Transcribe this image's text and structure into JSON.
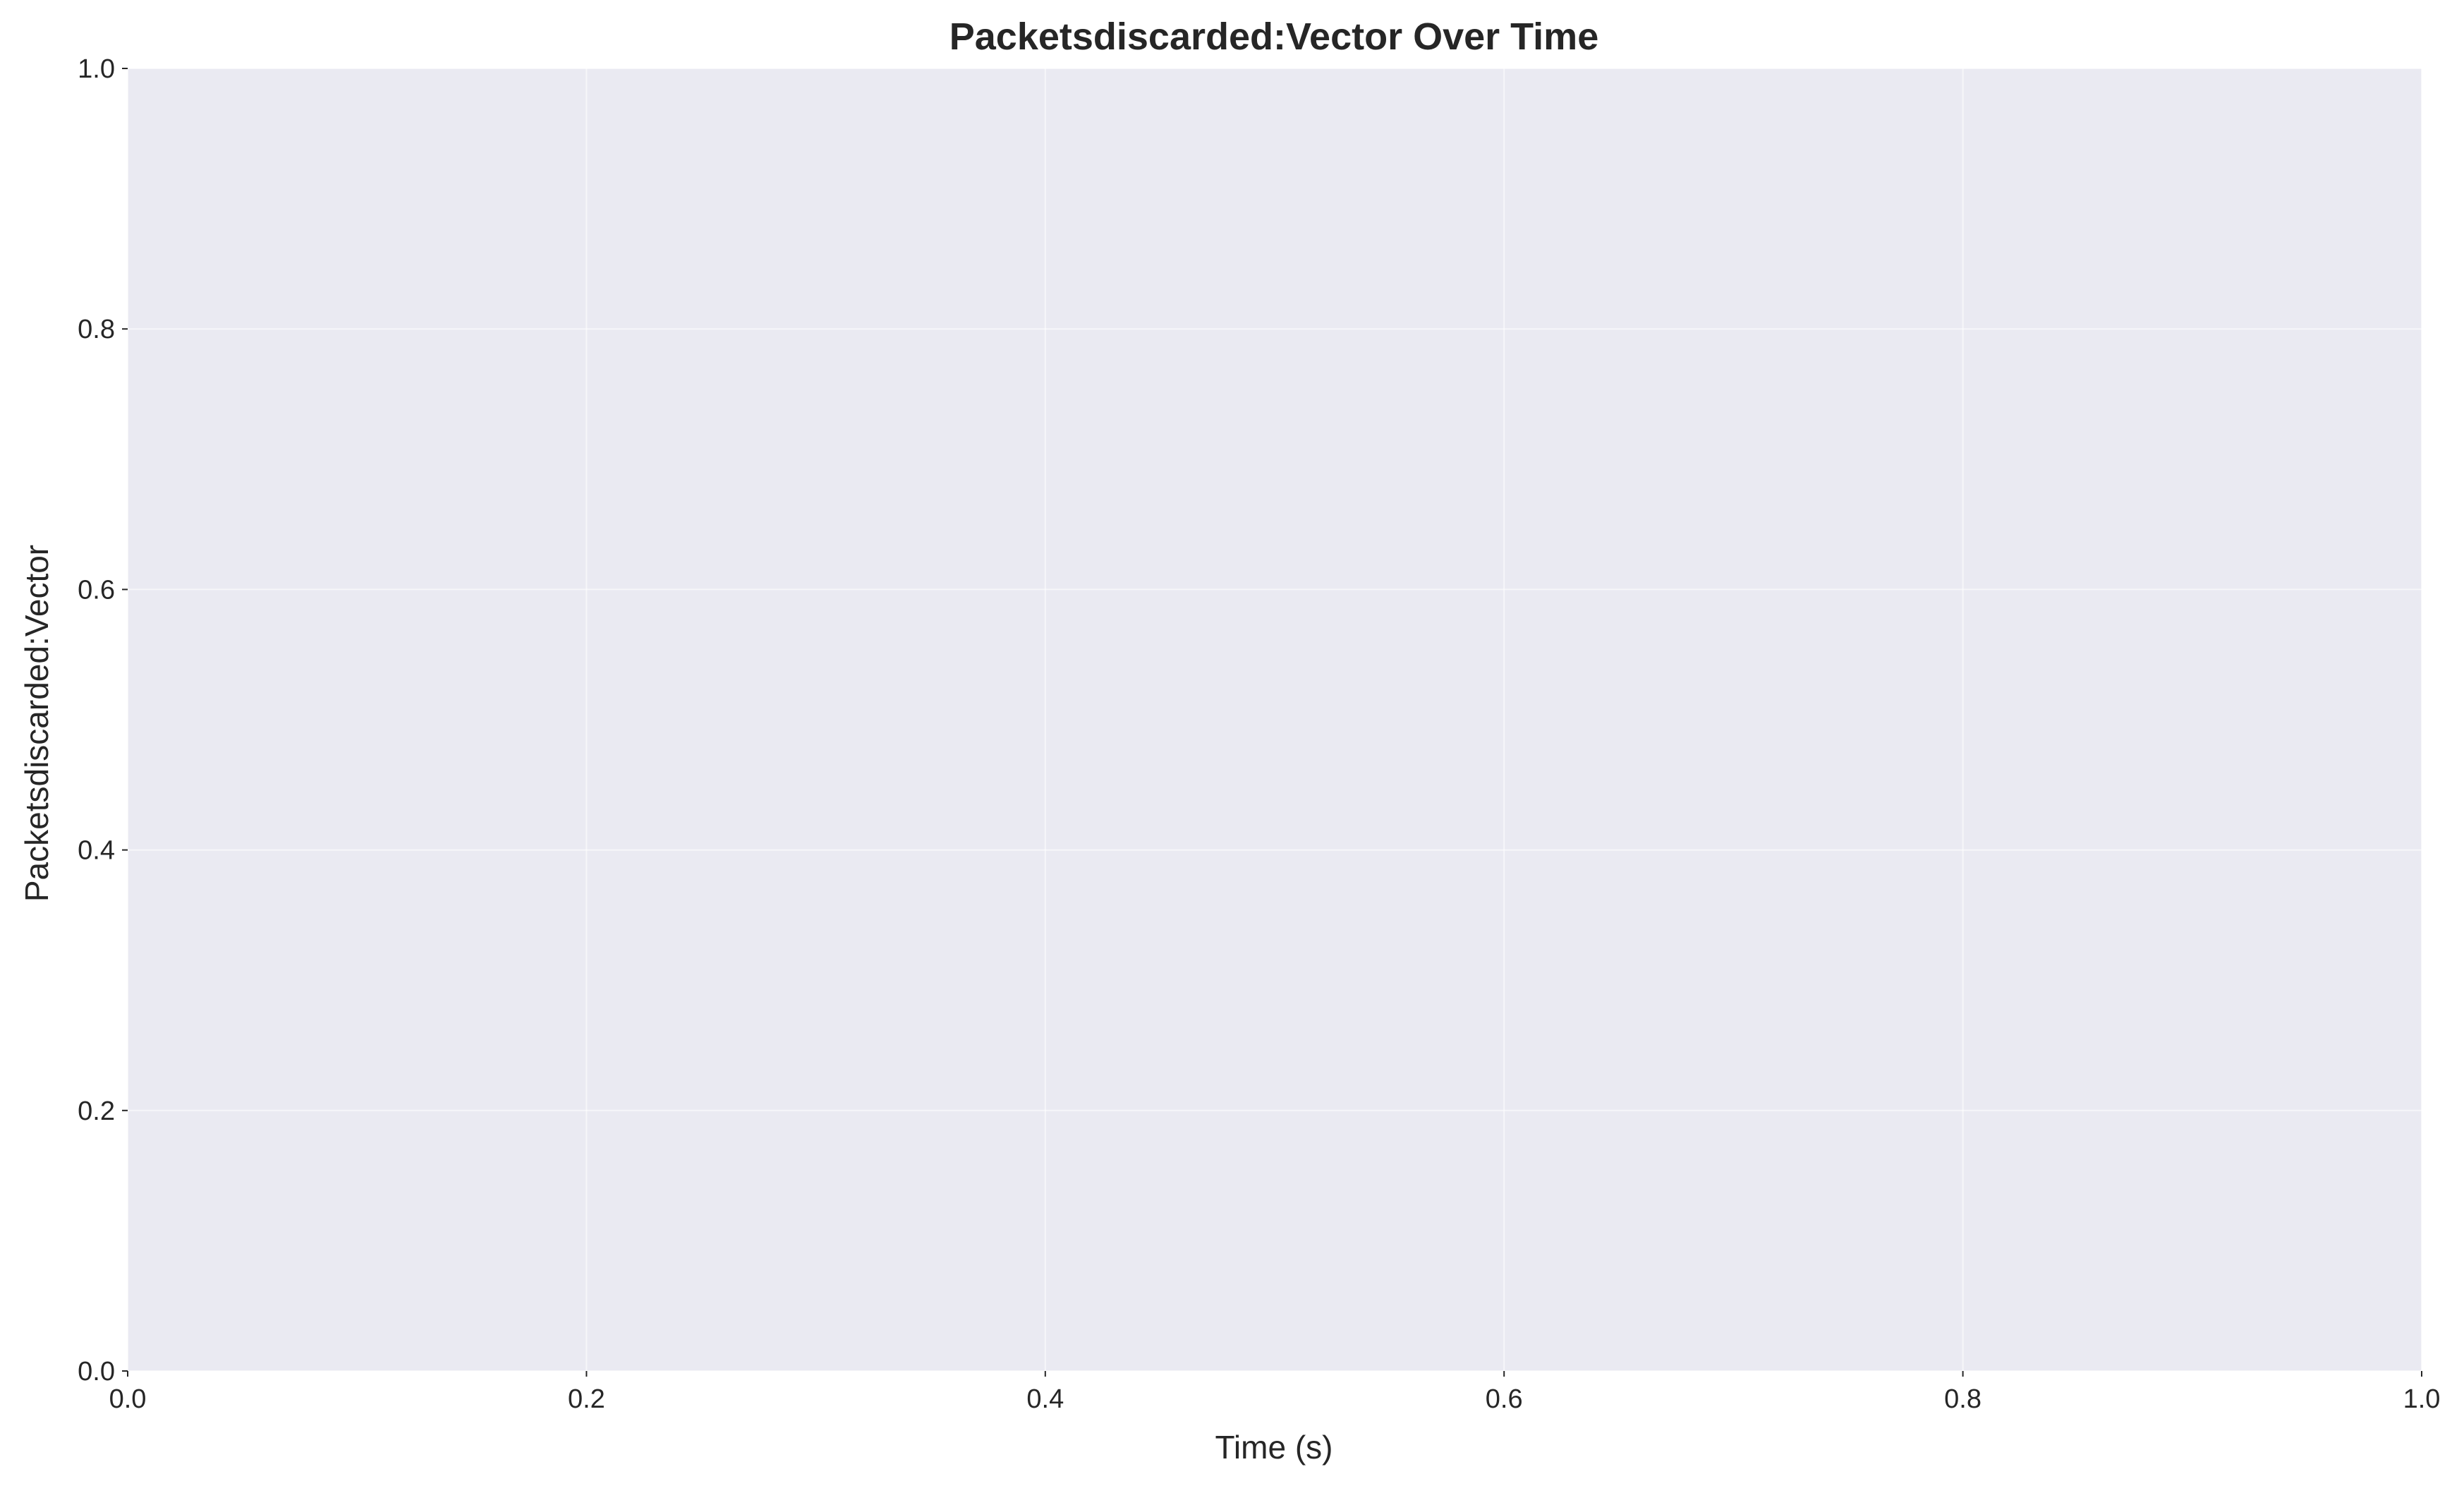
{
  "chart_data": {
    "type": "line",
    "title": "Packetsdiscarded:Vector Over Time",
    "xlabel": "Time (s)",
    "ylabel": "Packetsdiscarded:Vector",
    "xlim": [
      0.0,
      1.0
    ],
    "ylim": [
      0.0,
      1.0
    ],
    "x_ticks": [
      "0.0",
      "0.2",
      "0.4",
      "0.6",
      "0.8",
      "1.0"
    ],
    "y_ticks": [
      "0.0",
      "0.2",
      "0.4",
      "0.6",
      "0.8",
      "1.0"
    ],
    "series": [],
    "grid": true,
    "legend": "none",
    "colors": {
      "plot_background": "#eaeaf2",
      "grid": "#ffffff",
      "text": "#262626"
    }
  }
}
